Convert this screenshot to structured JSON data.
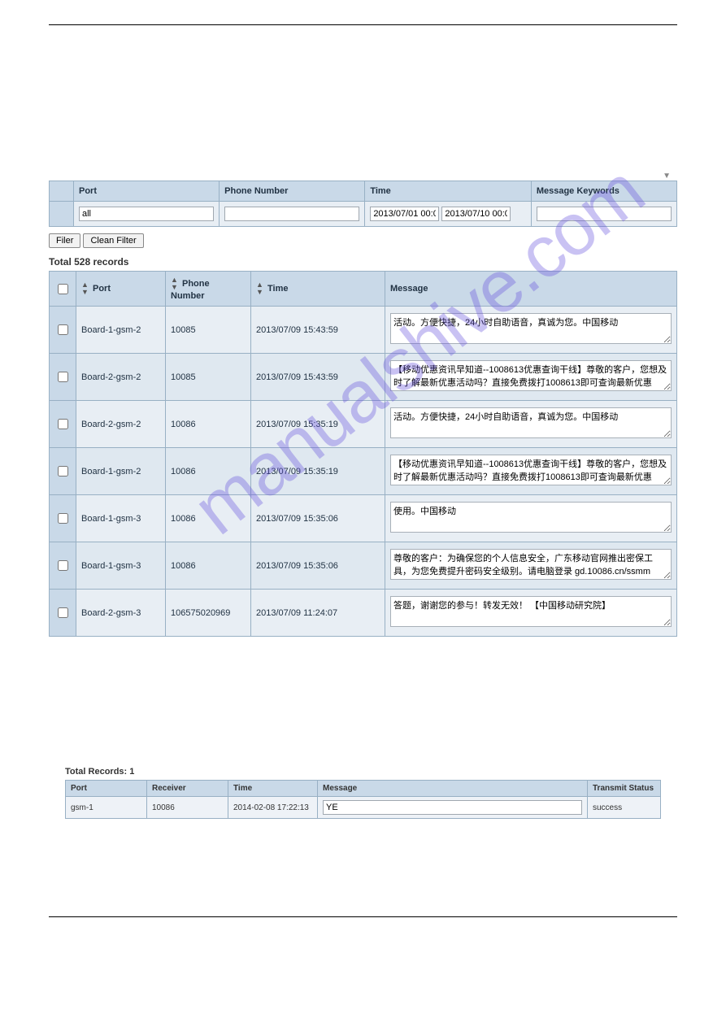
{
  "watermark": "manualshive.com",
  "filter": {
    "headers": {
      "port": "Port",
      "phone": "Phone Number",
      "time": "Time",
      "keywords": "Message Keywords"
    },
    "values": {
      "port": "all",
      "phone": "",
      "time_from": "2013/07/01 00:0",
      "time_to": "2013/07/10 00:0",
      "keywords": ""
    },
    "buttons": {
      "filter": "Filer",
      "clean": "Clean Filter"
    }
  },
  "records": {
    "label": "Total 528 records",
    "columns": {
      "port": "Port",
      "phone": "Phone Number",
      "time": "Time",
      "message": "Message"
    },
    "col_widths": {
      "port": "110px",
      "phone": "105px",
      "time": "165px"
    },
    "rows": [
      {
        "port": "Board-1-gsm-2",
        "phone": "10085",
        "time": "2013/07/09 15:43:59",
        "message": "活动。方便快捷，24小时自助语音，真诚为您。中国移动"
      },
      {
        "port": "Board-2-gsm-2",
        "phone": "10085",
        "time": "2013/07/09 15:43:59",
        "message": "【移动优惠资讯早知道--1008613优惠查询干线】尊敬的客户，您想及时了解最新优惠活动吗？直接免费拨打1008613即可查询最新优惠"
      },
      {
        "port": "Board-2-gsm-2",
        "phone": "10086",
        "time": "2013/07/09 15:35:19",
        "message": "活动。方便快捷，24小时自助语音，真诚为您。中国移动"
      },
      {
        "port": "Board-1-gsm-2",
        "phone": "10086",
        "time": "2013/07/09 15:35:19",
        "message": "【移动优惠资讯早知道--1008613优惠查询干线】尊敬的客户，您想及时了解最新优惠活动吗？直接免费拨打1008613即可查询最新优惠"
      },
      {
        "port": "Board-1-gsm-3",
        "phone": "10086",
        "time": "2013/07/09 15:35:06",
        "message": "使用。中国移动"
      },
      {
        "port": "Board-1-gsm-3",
        "phone": "10086",
        "time": "2013/07/09 15:35:06",
        "message": "尊敬的客户：为确保您的个人信息安全，广东移动官网推出密保工具，为您免费提升密码安全级别。请电脑登录 gd.10086.cn/ssmm"
      },
      {
        "port": "Board-2-gsm-3",
        "phone": "106575020969",
        "time": "2013/07/09 11:24:07",
        "message": "答题，谢谢您的参与！转发无效！ 【中国移动研究院】"
      }
    ]
  },
  "outbox": {
    "label": "Total Records: 1",
    "columns": {
      "port": "Port",
      "receiver": "Receiver",
      "time": "Time",
      "message": "Message",
      "status": "Transmit Status"
    },
    "rows": [
      {
        "port": "gsm-1",
        "receiver": "10086",
        "time": "2014-02-08 17:22:13",
        "message": "YE",
        "status": "success"
      }
    ]
  },
  "colors": {
    "header_bg": "#c9d9e8",
    "row_bg": "#e8eef4",
    "row_alt_bg": "#dfe8f0",
    "border": "#98b0c4"
  }
}
